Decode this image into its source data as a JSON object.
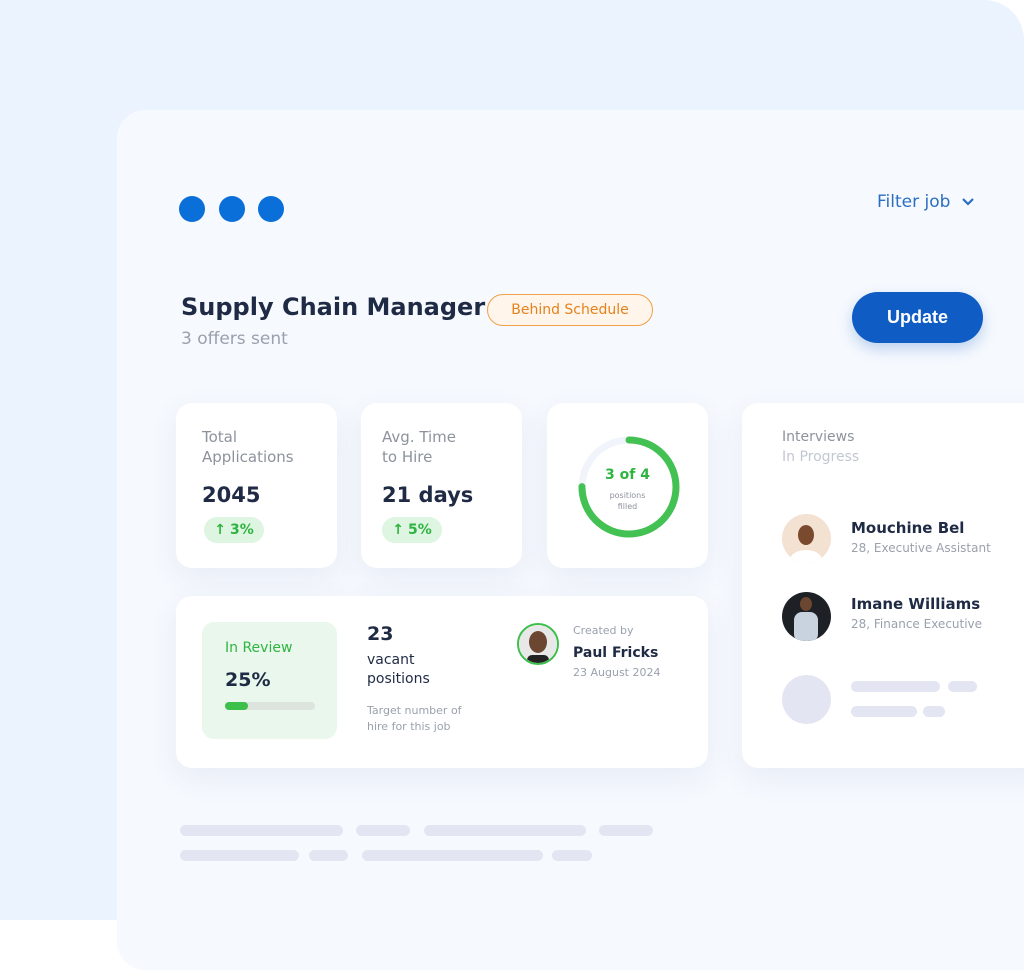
{
  "header": {
    "filter_label": "Filter job",
    "filter_icon": "chevron-down-icon"
  },
  "job": {
    "title": "Supply Chain Manager",
    "subtitle": "3 offers sent",
    "status": "Behind Schedule",
    "update_label": "Update"
  },
  "colors": {
    "accent": "#0f5cc4",
    "dots": "#0a6fd9",
    "success": "#2fb441",
    "warning": "#e4821e"
  },
  "stats": [
    {
      "label_line1": "Total",
      "label_line2": "Applications",
      "value": "2045",
      "change": "3%",
      "change_icon": "arrow-up-icon"
    },
    {
      "label_line1": "Avg. Time",
      "label_line2": "to Hire",
      "value": "21 days",
      "change": "5%",
      "change_icon": "arrow-up-icon"
    }
  ],
  "positions": {
    "value": "3 of 4",
    "label_line1": "positions",
    "label_line2": "filled",
    "filled": 3,
    "total": 4
  },
  "review": {
    "label": "In Review",
    "value": "25%",
    "progress": 25
  },
  "vacant": {
    "value": "23",
    "label_line1": "vacant",
    "label_line2": "positions",
    "note_line1": "Target number of",
    "note_line2": "hire for this job"
  },
  "creator": {
    "caption": "Created by",
    "name": "Paul Fricks",
    "date": "23 August 2024"
  },
  "interviews": {
    "title_line1": "Interviews",
    "title_line2": "In Progress",
    "people": [
      {
        "name": "Mouchine Bel",
        "detail": "28,  Executive Assistant"
      },
      {
        "name": "Imane Williams",
        "detail": "28,  Finance Executive"
      }
    ]
  }
}
